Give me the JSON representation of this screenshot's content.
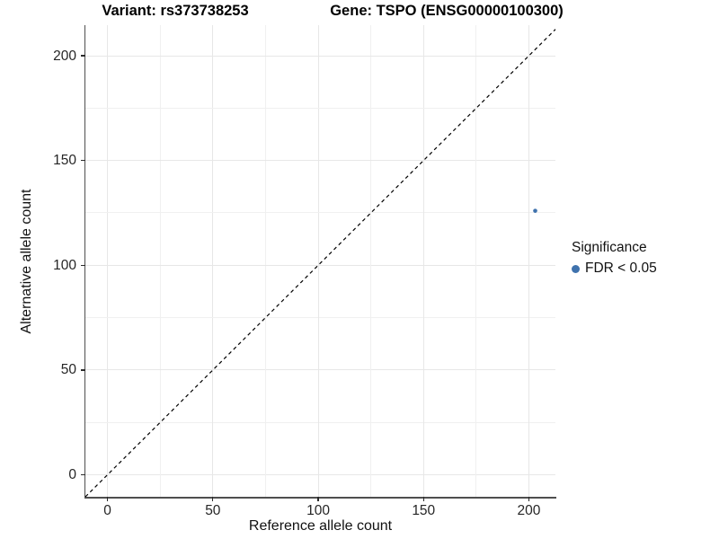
{
  "chart_data": {
    "type": "scatter",
    "title_left": "Variant: rs373738253",
    "title_right": "Gene: TSPO (ENSG00000100300)",
    "xlabel": "Reference allele count",
    "ylabel": "Alternative allele count",
    "x_ticks": [
      0,
      50,
      100,
      150,
      200
    ],
    "y_ticks": [
      0,
      50,
      100,
      150,
      200
    ],
    "x_range": [
      -10.5,
      212.6
    ],
    "y_range": [
      -10.5,
      214.6
    ],
    "grid_step": 25,
    "grid_max": 200,
    "grid_on": true,
    "points": [
      {
        "x": 203,
        "y": 126,
        "series": "FDR < 0.05",
        "color": "#3f72ad",
        "radius": 2.3
      }
    ],
    "reference_line": {
      "type": "identity",
      "style": "dashed",
      "color": "#000000"
    },
    "legend": {
      "position": "right",
      "title": "Significance",
      "entries": [
        {
          "label": "FDR < 0.05",
          "color": "#3f72ad"
        }
      ]
    },
    "colors": {
      "point_blue": "#3f72ad",
      "gridline": "#e7e7e7",
      "axis_line": "#4f4f4f",
      "background": "#ffffff"
    }
  }
}
